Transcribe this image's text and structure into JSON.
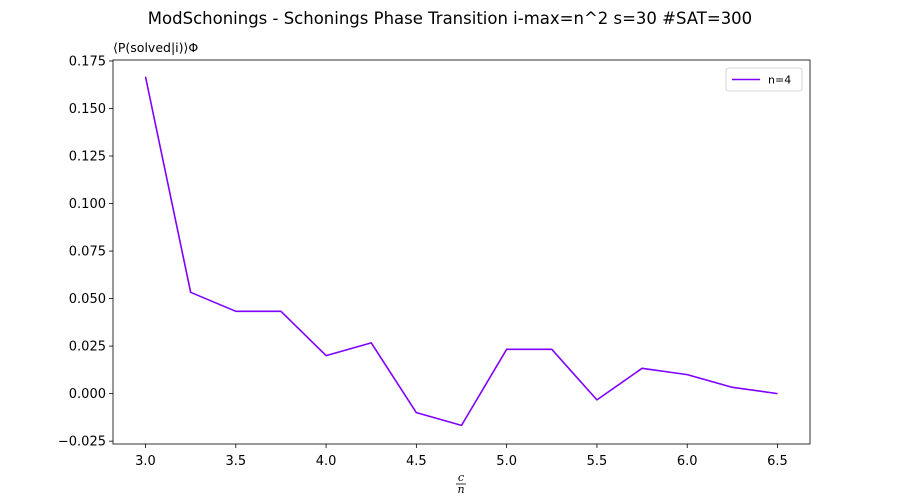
{
  "chart_data": {
    "type": "line",
    "title": "ModSchonings - Schonings Phase Transition  i-max=n^2 s=30 #SAT=300",
    "ylabel": "⟨P(solved|i)⟩Φ",
    "xlabel_numerator": "c",
    "xlabel_denominator": "n",
    "xlim": [
      2.82,
      6.68
    ],
    "ylim": [
      -0.0265,
      0.1755
    ],
    "x_ticks": [
      3.0,
      3.5,
      4.0,
      4.5,
      5.0,
      5.5,
      6.0,
      6.5
    ],
    "x_tick_labels": [
      "3.0",
      "3.5",
      "4.0",
      "4.5",
      "5.0",
      "5.5",
      "6.0",
      "6.5"
    ],
    "y_ticks": [
      -0.025,
      0.0,
      0.025,
      0.05,
      0.075,
      0.1,
      0.125,
      0.15,
      0.175
    ],
    "y_tick_labels": [
      "−0.025",
      "0.000",
      "0.025",
      "0.050",
      "0.075",
      "0.100",
      "0.125",
      "0.150",
      "0.175"
    ],
    "grid": false,
    "legend_position": "top-right",
    "series": [
      {
        "name": "n=4",
        "color": "#8000ff",
        "x": [
          3.0,
          3.25,
          3.5,
          3.75,
          4.0,
          4.25,
          4.5,
          4.75,
          5.0,
          5.25,
          5.5,
          5.75,
          6.0,
          6.25,
          6.5
        ],
        "y": [
          0.1667,
          0.0533,
          0.0433,
          0.0433,
          0.02,
          0.0267,
          -0.01,
          -0.0167,
          0.0233,
          0.0233,
          -0.0033,
          0.0133,
          0.01,
          0.0033,
          0.0
        ]
      }
    ]
  }
}
